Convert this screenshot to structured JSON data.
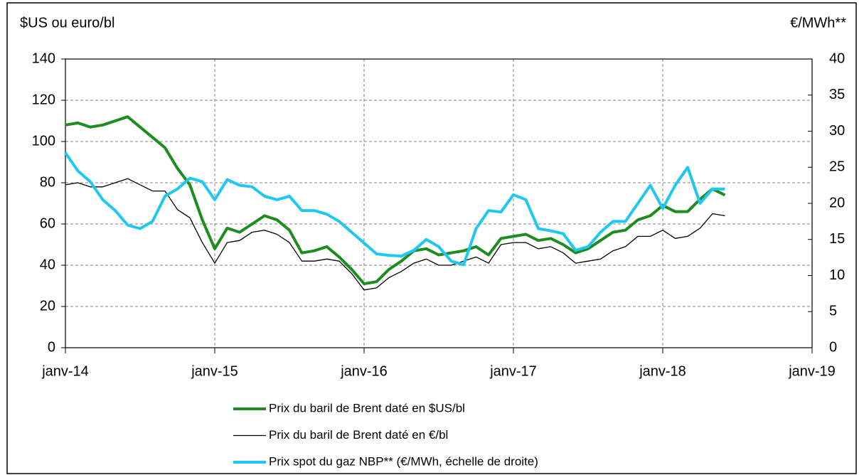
{
  "chart_data": {
    "type": "line",
    "y_label": "$US ou euro/bl",
    "y2_label": "€/MWh**",
    "x": [
      "2014-01",
      "2014-02",
      "2014-03",
      "2014-04",
      "2014-05",
      "2014-06",
      "2014-07",
      "2014-08",
      "2014-09",
      "2014-10",
      "2014-11",
      "2014-12",
      "2015-01",
      "2015-02",
      "2015-03",
      "2015-04",
      "2015-05",
      "2015-06",
      "2015-07",
      "2015-08",
      "2015-09",
      "2015-10",
      "2015-11",
      "2015-12",
      "2016-01",
      "2016-02",
      "2016-03",
      "2016-04",
      "2016-05",
      "2016-06",
      "2016-07",
      "2016-08",
      "2016-09",
      "2016-10",
      "2016-11",
      "2016-12",
      "2017-01",
      "2017-02",
      "2017-03",
      "2017-04",
      "2017-05",
      "2017-06",
      "2017-07",
      "2017-08",
      "2017-09",
      "2017-10",
      "2017-11",
      "2017-12",
      "2018-01",
      "2018-02",
      "2018-03",
      "2018-04",
      "2018-05",
      "2018-06"
    ],
    "series": [
      {
        "name": "Prix du baril de Brent daté en $US/bl",
        "color": "#1e8c1e",
        "width": 4,
        "values": [
          108,
          109,
          107,
          108,
          110,
          112,
          107,
          102,
          97,
          87,
          79,
          62,
          48,
          58,
          56,
          60,
          64,
          62,
          57,
          46,
          47,
          49,
          44,
          38,
          31,
          32,
          38,
          42,
          47,
          48,
          45,
          46,
          47,
          49,
          45,
          53,
          54,
          55,
          52,
          53,
          50,
          46,
          48,
          52,
          56,
          57,
          62,
          64,
          69,
          66,
          66,
          72,
          77,
          74
        ]
      },
      {
        "name": "Prix du baril de Brent daté en €/bl",
        "color": "#000000",
        "width": 1.3,
        "values": [
          79,
          80,
          78,
          78,
          80,
          82,
          79,
          76,
          76,
          67,
          63,
          51,
          41,
          51,
          52,
          56,
          57,
          55,
          51,
          42,
          42,
          43,
          42,
          36,
          28,
          29,
          34,
          37,
          41,
          43,
          40,
          40,
          42,
          44,
          41,
          50,
          51,
          51,
          48,
          49,
          46,
          41,
          42,
          43,
          47,
          49,
          54,
          54,
          57,
          53,
          54,
          58,
          65,
          64
        ]
      },
      {
        "name": "Prix spot du gaz NBP** (€/MWh, échelle de droite)",
        "color": "#1ec8f0",
        "width": 4,
        "axis": "y2",
        "values": [
          27,
          24.5,
          23,
          20.5,
          19,
          17,
          16.5,
          17.5,
          21,
          22,
          23.5,
          23,
          20.5,
          23.3,
          22.5,
          22.3,
          21,
          20.5,
          21,
          19,
          19,
          18.5,
          17.5,
          16,
          14.5,
          13,
          12.8,
          12.7,
          13.5,
          15,
          14,
          12,
          11.5,
          16.5,
          19,
          18.8,
          21.2,
          20.5,
          16.5,
          16.2,
          15.8,
          13.5,
          14,
          16,
          17.5,
          17.5,
          20,
          22.5,
          19.3,
          22.5,
          25,
          20,
          22,
          22
        ]
      }
    ],
    "xlim": [
      "2014-01",
      "2019-01"
    ],
    "xticks": [
      {
        "value": "2014-01",
        "label": "janv-14"
      },
      {
        "value": "2015-01",
        "label": "janv-15"
      },
      {
        "value": "2016-01",
        "label": "janv-16"
      },
      {
        "value": "2017-01",
        "label": "janv-17"
      },
      {
        "value": "2018-01",
        "label": "janv-18"
      },
      {
        "value": "2019-01",
        "label": "janv-19"
      }
    ],
    "ylim": [
      0,
      140
    ],
    "yticks": [
      0,
      20,
      40,
      60,
      80,
      100,
      120,
      140
    ],
    "y2lim": [
      0,
      40
    ],
    "y2ticks": [
      0,
      5,
      10,
      15,
      20,
      25,
      30,
      35,
      40
    ],
    "grid": true
  }
}
